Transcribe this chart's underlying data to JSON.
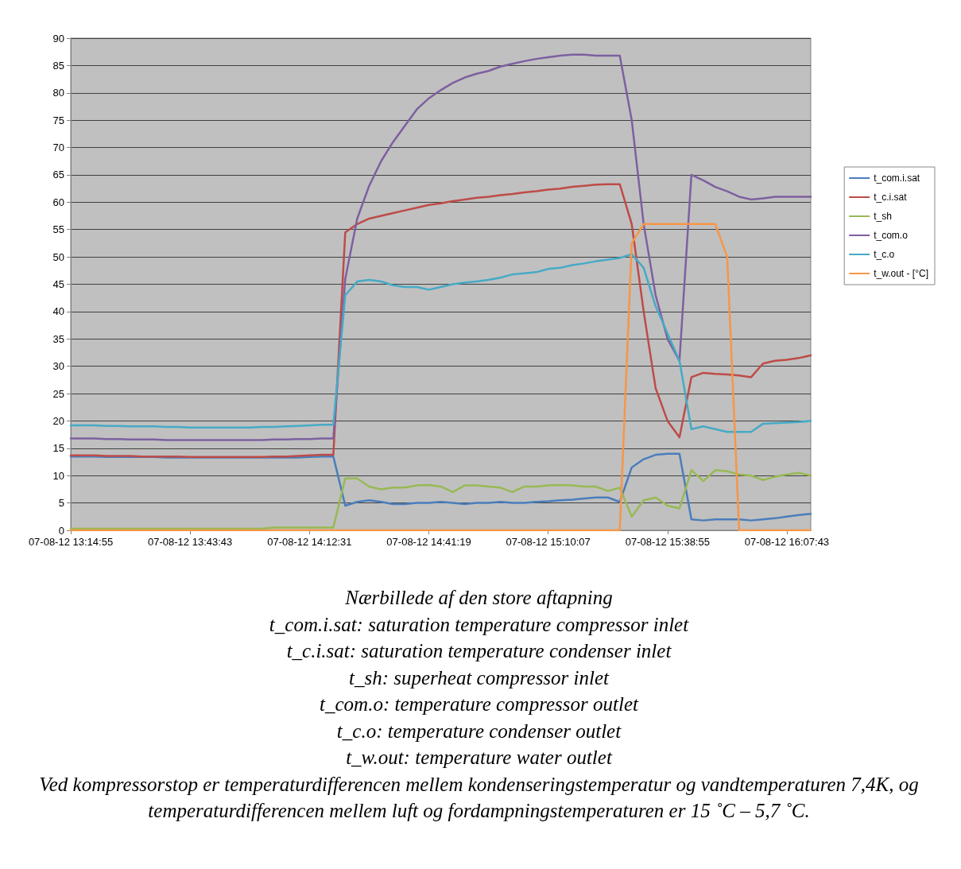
{
  "chart_data": {
    "type": "line",
    "categories": [
      "07-08-12 13:14:55",
      null,
      null,
      null,
      null,
      null,
      null,
      null,
      null,
      null,
      "07-08-12 13:43:43",
      null,
      null,
      null,
      null,
      null,
      null,
      null,
      null,
      null,
      "07-08-12 14:12:31",
      null,
      null,
      null,
      null,
      null,
      null,
      null,
      null,
      null,
      "07-08-12 14:41:19",
      null,
      null,
      null,
      null,
      null,
      null,
      null,
      null,
      null,
      "07-08-12 15:10:07",
      null,
      null,
      null,
      null,
      null,
      null,
      null,
      null,
      null,
      "07-08-12 15:38:55",
      null,
      null,
      null,
      null,
      null,
      null,
      null,
      null,
      null,
      "07-08-12 16:07:43",
      null,
      null
    ],
    "series": [
      {
        "name": "t_com.i.sat",
        "color": "#4a7ebb",
        "values": [
          13.5,
          13.5,
          13.5,
          13.4,
          13.4,
          13.4,
          13.4,
          13.4,
          13.3,
          13.3,
          13.3,
          13.3,
          13.3,
          13.3,
          13.3,
          13.3,
          13.3,
          13.3,
          13.3,
          13.3,
          13.4,
          13.5,
          13.5,
          4.5,
          5.2,
          5.5,
          5.2,
          4.8,
          4.8,
          5,
          5,
          5.2,
          5,
          4.8,
          5,
          5,
          5.2,
          5,
          5,
          5.2,
          5.3,
          5.5,
          5.6,
          5.8,
          6,
          6,
          5.2,
          11.5,
          13,
          13.8,
          14,
          14,
          2,
          1.8,
          2,
          2,
          2,
          1.8,
          2,
          2.2,
          2.5,
          2.8,
          3
        ]
      },
      {
        "name": "t_c.i.sat",
        "color": "#be4b48",
        "values": [
          13.7,
          13.7,
          13.7,
          13.6,
          13.6,
          13.6,
          13.5,
          13.5,
          13.5,
          13.5,
          13.4,
          13.4,
          13.4,
          13.4,
          13.4,
          13.4,
          13.4,
          13.5,
          13.5,
          13.6,
          13.7,
          13.8,
          13.8,
          54.5,
          56,
          57,
          57.5,
          58,
          58.5,
          59,
          59.5,
          59.8,
          60.2,
          60.5,
          60.8,
          61,
          61.3,
          61.5,
          61.8,
          62,
          62.3,
          62.5,
          62.8,
          63,
          63.2,
          63.3,
          63.3,
          56,
          40,
          26,
          20,
          17,
          28,
          28.8,
          28.6,
          28.5,
          28.3,
          28,
          30.5,
          31,
          31.2,
          31.5,
          32
        ]
      },
      {
        "name": "t_sh",
        "color": "#98b954",
        "values": [
          0.3,
          0.3,
          0.3,
          0.3,
          0.3,
          0.3,
          0.3,
          0.3,
          0.3,
          0.3,
          0.3,
          0.3,
          0.3,
          0.3,
          0.3,
          0.3,
          0.3,
          0.5,
          0.5,
          0.5,
          0.5,
          0.5,
          0.5,
          9.5,
          9.5,
          8,
          7.5,
          7.8,
          7.8,
          8.2,
          8.3,
          8,
          7,
          8.2,
          8.2,
          8,
          7.8,
          7,
          8,
          8,
          8.2,
          8.3,
          8.2,
          8,
          8,
          7.2,
          7.8,
          2.5,
          5.5,
          6,
          4.5,
          4,
          11,
          9,
          11,
          10.8,
          10.2,
          10,
          9.2,
          9.8,
          10.2,
          10.5,
          10
        ]
      },
      {
        "name": "t_com.o",
        "color": "#7d60a0",
        "values": [
          16.8,
          16.8,
          16.8,
          16.7,
          16.7,
          16.6,
          16.6,
          16.6,
          16.5,
          16.5,
          16.5,
          16.5,
          16.5,
          16.5,
          16.5,
          16.5,
          16.5,
          16.6,
          16.6,
          16.7,
          16.7,
          16.8,
          16.8,
          46,
          57,
          63,
          67.5,
          71,
          74,
          77,
          79,
          80.5,
          81.8,
          82.8,
          83.5,
          84,
          84.8,
          85.3,
          85.8,
          86.2,
          86.5,
          86.8,
          87,
          87,
          86.8,
          86.8,
          86.8,
          75,
          56,
          43,
          35,
          31,
          65,
          64,
          62.8,
          62,
          61,
          60.5,
          60.7,
          61,
          61,
          61,
          61
        ]
      },
      {
        "name": "t_c.o",
        "color": "#46aac5",
        "values": [
          19.2,
          19.2,
          19.2,
          19.1,
          19.1,
          19,
          19,
          19,
          18.9,
          18.9,
          18.8,
          18.8,
          18.8,
          18.8,
          18.8,
          18.8,
          18.9,
          18.9,
          19,
          19.1,
          19.2,
          19.3,
          19.3,
          43,
          45.5,
          45.8,
          45.5,
          44.8,
          44.5,
          44.5,
          44,
          44.5,
          45,
          45.3,
          45.5,
          45.8,
          46.2,
          46.8,
          47,
          47.2,
          47.8,
          48,
          48.5,
          48.8,
          49.2,
          49.5,
          49.8,
          50.5,
          48,
          41,
          36,
          31,
          18.5,
          19,
          18.5,
          18,
          18,
          18,
          19.5,
          19.6,
          19.7,
          19.8,
          20
        ]
      },
      {
        "name": "t_w.out - [°C]",
        "color": "#f79646",
        "values": [
          0,
          0,
          0,
          0,
          0,
          0,
          0,
          0,
          0,
          0,
          0,
          0,
          0,
          0,
          0,
          0,
          0,
          0,
          0,
          0,
          0,
          0,
          0,
          0,
          0,
          0,
          0,
          0,
          0,
          0,
          0,
          0,
          0,
          0,
          0,
          0,
          0,
          0,
          0,
          0,
          0,
          0,
          0,
          0,
          0,
          0,
          0,
          52.5,
          56,
          56,
          56,
          56,
          56,
          56,
          56,
          50,
          0,
          0,
          0,
          0,
          0,
          0,
          0
        ]
      }
    ],
    "ylim": [
      0,
      90
    ],
    "yticks": [
      0,
      5,
      10,
      15,
      20,
      25,
      30,
      35,
      40,
      45,
      50,
      55,
      60,
      65,
      70,
      75,
      80,
      85,
      90
    ],
    "grid": "y",
    "legend": "right",
    "marker": "none",
    "line_style": "solid",
    "annotations": [
      "Nærbillede af den store aftapning",
      "t_com.i.sat: saturation temperature compressor inlet",
      "t_c.i.sat: saturation temperature condenser inlet",
      "t_sh: superheat compressor inlet",
      "t_com.o: temperature compressor outlet",
      "t_c.o: temperature condenser outlet",
      "t_w.out: temperature water outlet",
      "Ved kompressorstop er temperaturdifferencen mellem kondenseringstemperatur og vandtemperaturen 7,4K, og temperaturdifferencen mellem luft og fordampningstemperaturen er 15 ˚C – 5,7 ˚C."
    ]
  }
}
